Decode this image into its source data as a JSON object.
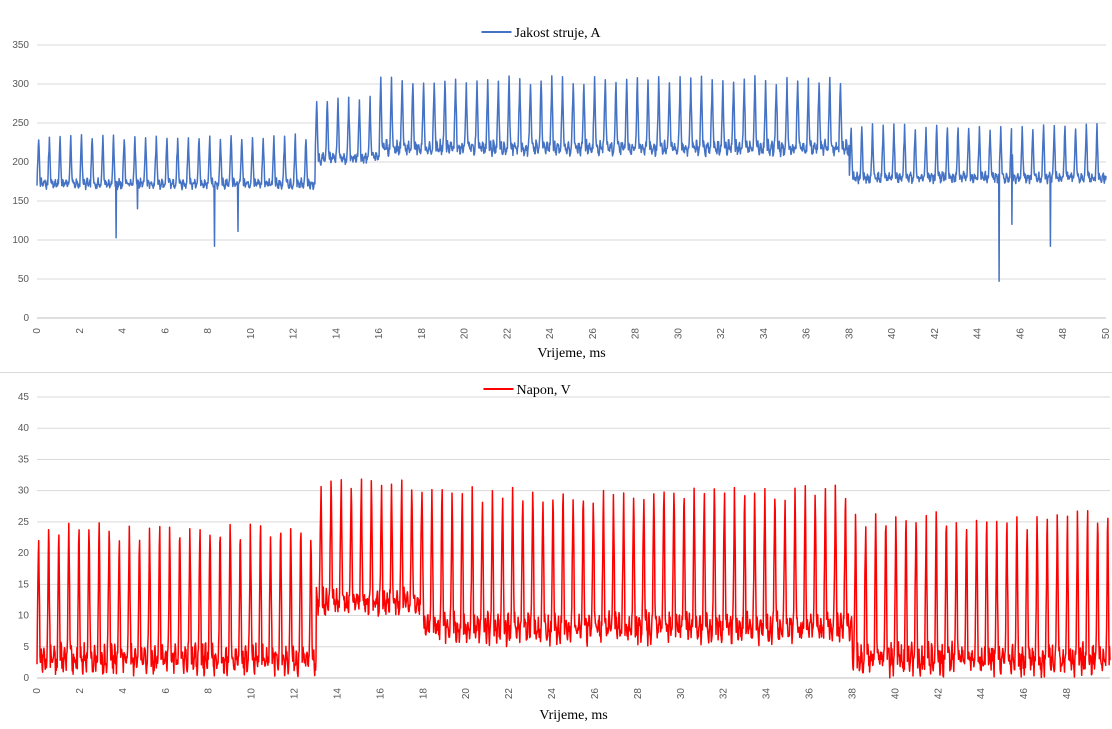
{
  "chart_data": [
    {
      "type": "line",
      "xlabel": "Vrijeme,  ms",
      "ylabel": "",
      "xlim": [
        0,
        50
      ],
      "ylim": [
        0,
        350
      ],
      "xticks": [
        0,
        2,
        4,
        6,
        8,
        10,
        12,
        14,
        16,
        18,
        20,
        22,
        24,
        26,
        28,
        30,
        32,
        34,
        36,
        38,
        40,
        42,
        44,
        46,
        48,
        50
      ],
      "yticks": [
        0,
        50,
        100,
        150,
        200,
        250,
        300,
        350
      ],
      "grid": true,
      "legend_position": "top-center",
      "series": [
        {
          "name": "Jakost struje, A",
          "color": "#4472c4",
          "period": 0.5,
          "segments": [
            {
              "from": 0,
              "to": 13,
              "base": 172,
              "peak": 232
            },
            {
              "from": 13,
              "to": 16,
              "base": 205,
              "peak": 280
            },
            {
              "from": 16,
              "to": 38,
              "base": 218,
              "peak": 305
            },
            {
              "from": 38,
              "to": 50,
              "base": 180,
              "peak": 245
            }
          ],
          "spikes": [
            {
              "x": 3.7,
              "y": 103
            },
            {
              "x": 4.7,
              "y": 140
            },
            {
              "x": 8.3,
              "y": 92
            },
            {
              "x": 9.4,
              "y": 111
            },
            {
              "x": 45.0,
              "y": 47
            },
            {
              "x": 45.6,
              "y": 120
            },
            {
              "x": 47.4,
              "y": 92
            }
          ]
        }
      ]
    },
    {
      "type": "line",
      "xlabel": "Vrijeme,  ms",
      "ylabel": "",
      "xlim": [
        0,
        50
      ],
      "ylim": [
        0,
        45
      ],
      "xticks": [
        0,
        2,
        4,
        6,
        8,
        10,
        12,
        14,
        16,
        18,
        20,
        22,
        24,
        26,
        28,
        30,
        32,
        34,
        36,
        38,
        40,
        42,
        44,
        46,
        48
      ],
      "yticks": [
        0,
        5,
        10,
        15,
        20,
        25,
        30,
        35,
        40,
        45
      ],
      "grid": true,
      "legend_position": "top-center",
      "series": [
        {
          "name": "Napon, V",
          "color": "#ff0000",
          "period": 0.47,
          "segments": [
            {
              "from": 0,
              "to": 13,
              "base": 3,
              "peak": 25
            },
            {
              "from": 13,
              "to": 18,
              "base": 12,
              "peak": 32
            },
            {
              "from": 18,
              "to": 38,
              "base": 8,
              "peak": 31
            },
            {
              "from": 38,
              "to": 50,
              "base": 3,
              "peak": 27
            }
          ],
          "spikes": []
        }
      ]
    }
  ]
}
